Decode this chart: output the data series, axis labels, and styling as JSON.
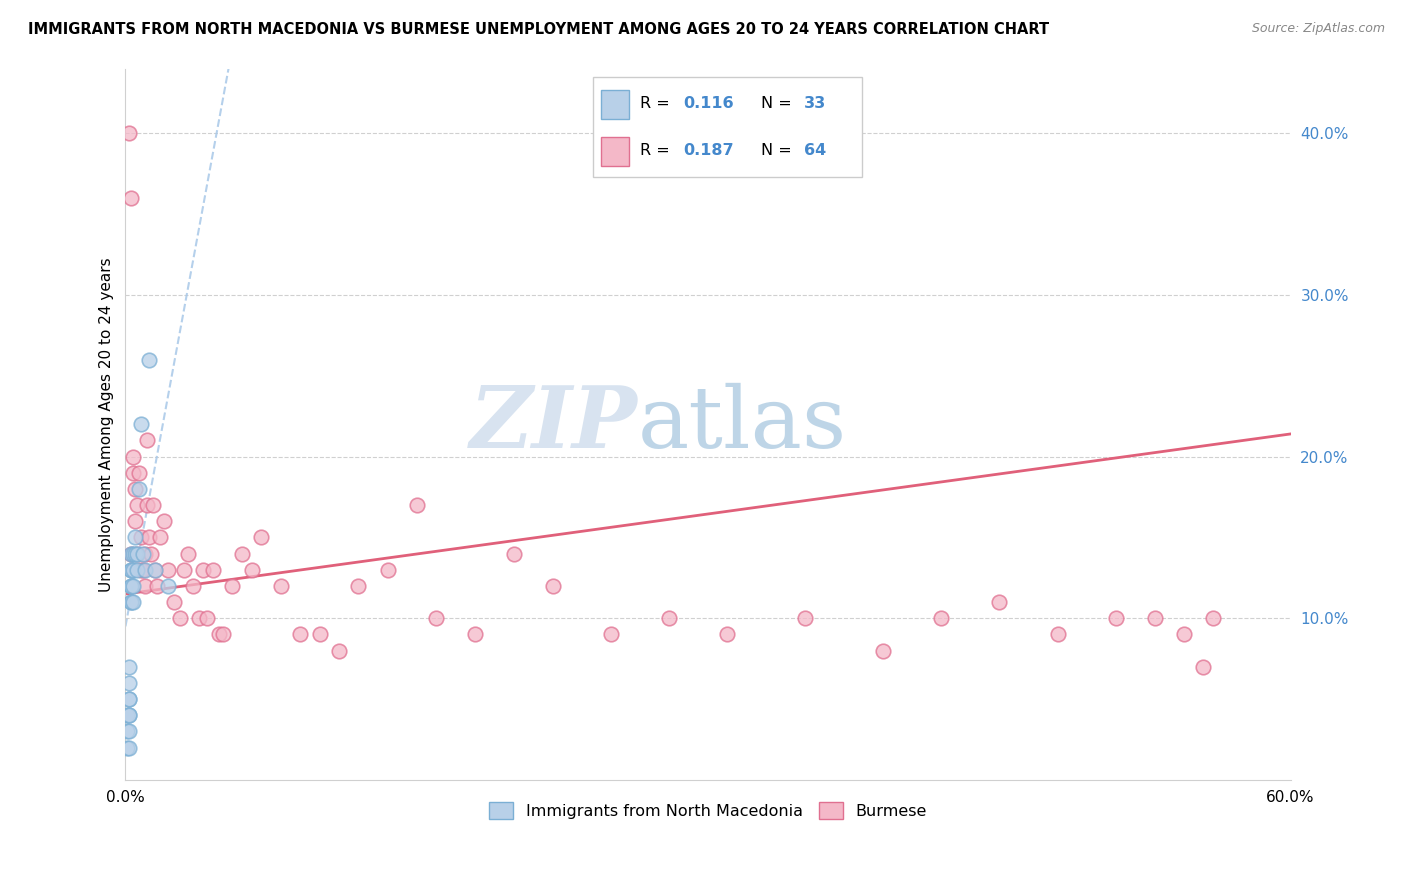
{
  "title": "IMMIGRANTS FROM NORTH MACEDONIA VS BURMESE UNEMPLOYMENT AMONG AGES 20 TO 24 YEARS CORRELATION CHART",
  "source": "Source: ZipAtlas.com",
  "ylabel": "Unemployment Among Ages 20 to 24 years",
  "series1_label": "Immigrants from North Macedonia",
  "series2_label": "Burmese",
  "series1_R": "0.116",
  "series1_N": "33",
  "series2_R": "0.187",
  "series2_N": "64",
  "xlim": [
    0.0,
    0.6
  ],
  "ylim": [
    0.0,
    0.44
  ],
  "x_ticks": [
    0.0,
    0.1,
    0.2,
    0.3,
    0.4,
    0.5,
    0.6
  ],
  "x_tick_labels": [
    "0.0%",
    "",
    "",
    "",
    "",
    "",
    "60.0%"
  ],
  "y_ticks_right": [
    0.1,
    0.2,
    0.3,
    0.4
  ],
  "y_tick_labels_right": [
    "10.0%",
    "20.0%",
    "30.0%",
    "40.0%"
  ],
  "color_blue_fill": "#b8d0e8",
  "color_blue_edge": "#7bafd4",
  "color_pink_fill": "#f4b8c8",
  "color_pink_edge": "#e07090",
  "color_trend_blue": "#a8c8e8",
  "color_trend_pink": "#e0607a",
  "watermark_zip": "#b8cfe8",
  "watermark_atlas": "#8ab0d0",
  "series1_x": [
    0.001,
    0.001,
    0.001,
    0.002,
    0.002,
    0.002,
    0.002,
    0.002,
    0.002,
    0.002,
    0.002,
    0.003,
    0.003,
    0.003,
    0.003,
    0.003,
    0.003,
    0.003,
    0.004,
    0.004,
    0.004,
    0.004,
    0.005,
    0.005,
    0.006,
    0.006,
    0.007,
    0.008,
    0.009,
    0.01,
    0.012,
    0.015,
    0.022
  ],
  "series1_y": [
    0.04,
    0.03,
    0.02,
    0.05,
    0.04,
    0.06,
    0.03,
    0.05,
    0.07,
    0.04,
    0.02,
    0.13,
    0.14,
    0.12,
    0.11,
    0.13,
    0.12,
    0.11,
    0.14,
    0.12,
    0.11,
    0.13,
    0.15,
    0.14,
    0.14,
    0.13,
    0.18,
    0.22,
    0.14,
    0.13,
    0.26,
    0.13,
    0.12
  ],
  "series2_x": [
    0.002,
    0.003,
    0.003,
    0.004,
    0.004,
    0.005,
    0.005,
    0.006,
    0.006,
    0.007,
    0.008,
    0.008,
    0.009,
    0.01,
    0.01,
    0.011,
    0.011,
    0.012,
    0.013,
    0.014,
    0.015,
    0.016,
    0.018,
    0.02,
    0.022,
    0.025,
    0.028,
    0.03,
    0.032,
    0.035,
    0.038,
    0.04,
    0.042,
    0.045,
    0.048,
    0.05,
    0.055,
    0.06,
    0.065,
    0.07,
    0.08,
    0.09,
    0.1,
    0.11,
    0.12,
    0.135,
    0.15,
    0.16,
    0.18,
    0.2,
    0.22,
    0.25,
    0.28,
    0.31,
    0.35,
    0.39,
    0.42,
    0.45,
    0.48,
    0.51,
    0.53,
    0.545,
    0.555,
    0.56
  ],
  "series2_y": [
    0.4,
    0.36,
    0.14,
    0.2,
    0.19,
    0.18,
    0.16,
    0.14,
    0.17,
    0.19,
    0.13,
    0.15,
    0.13,
    0.12,
    0.14,
    0.21,
    0.17,
    0.15,
    0.14,
    0.17,
    0.13,
    0.12,
    0.15,
    0.16,
    0.13,
    0.11,
    0.1,
    0.13,
    0.14,
    0.12,
    0.1,
    0.13,
    0.1,
    0.13,
    0.09,
    0.09,
    0.12,
    0.14,
    0.13,
    0.15,
    0.12,
    0.09,
    0.09,
    0.08,
    0.12,
    0.13,
    0.17,
    0.1,
    0.09,
    0.14,
    0.12,
    0.09,
    0.1,
    0.09,
    0.1,
    0.08,
    0.1,
    0.11,
    0.09,
    0.1,
    0.1,
    0.09,
    0.07,
    0.1
  ],
  "trend1_slope": 6.5,
  "trend1_intercept": 0.095,
  "trend2_slope": 0.165,
  "trend2_intercept": 0.115
}
